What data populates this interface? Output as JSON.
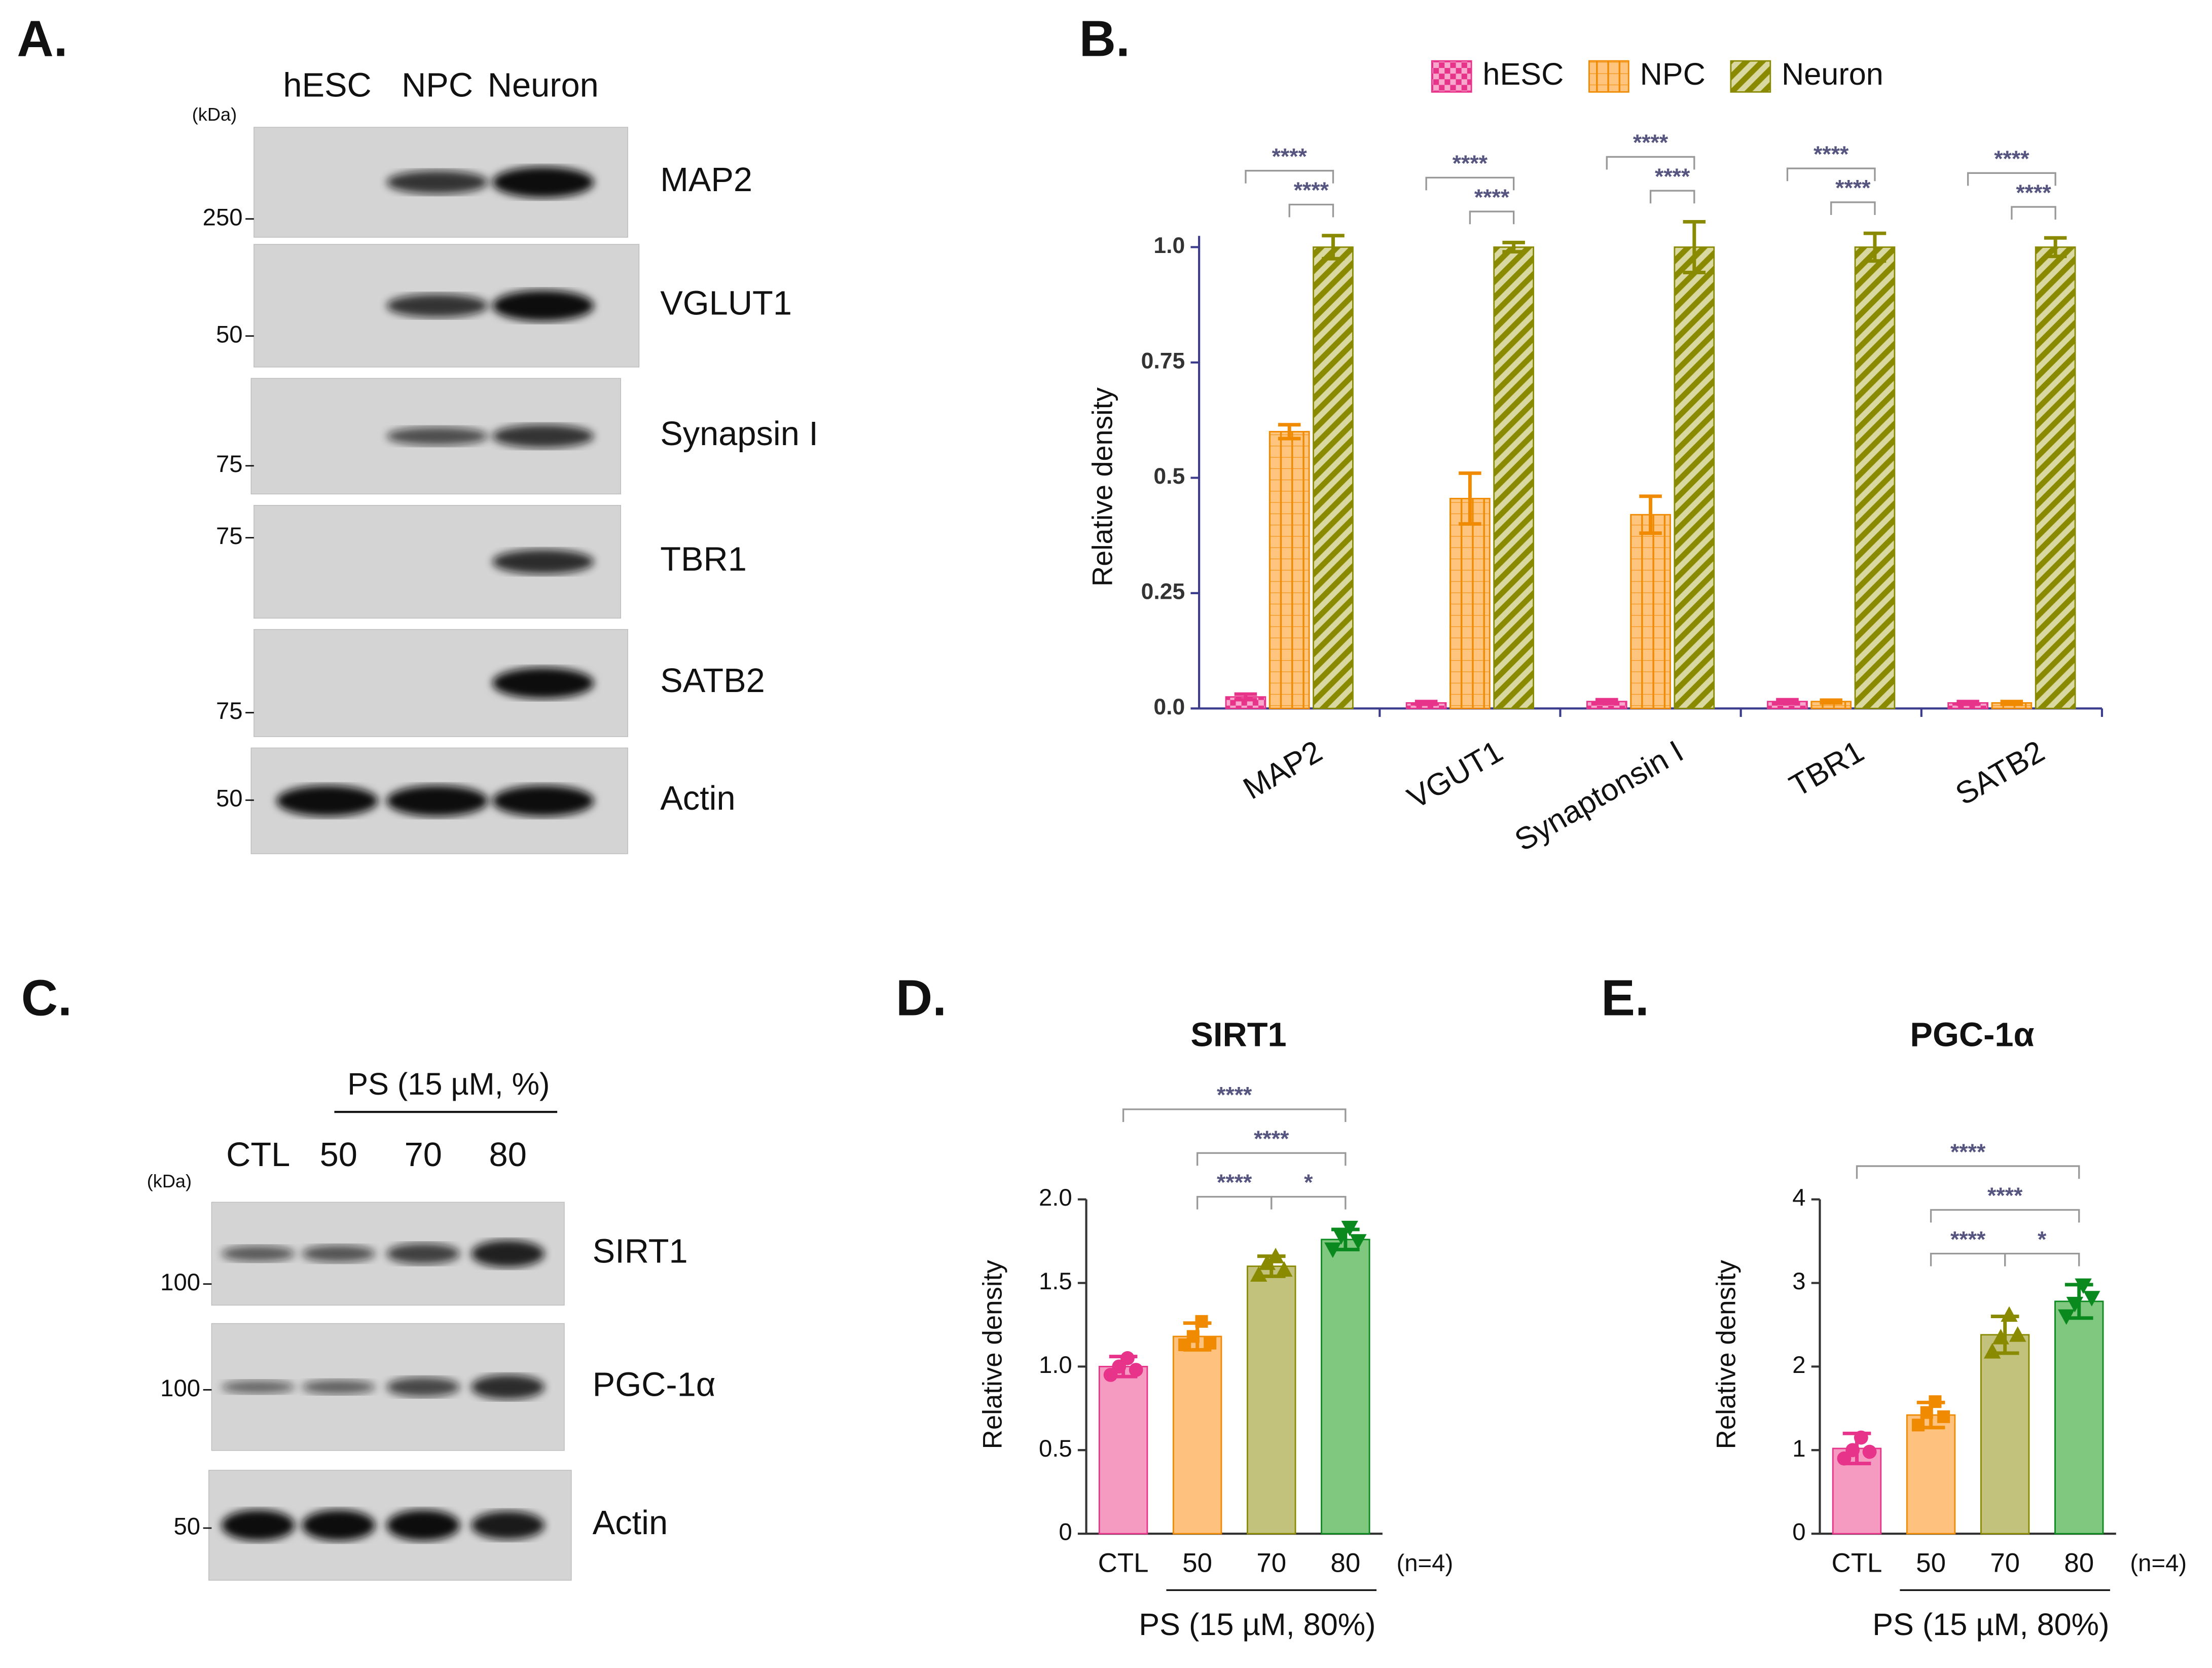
{
  "panel_labels": [
    "A.",
    "B.",
    "C.",
    "D.",
    "E."
  ],
  "blot_a": {
    "unit": "(kDa)",
    "lanes": [
      "hESC",
      "NPC",
      "Neuron"
    ],
    "rows": [
      {
        "label": "MAP2",
        "marker": "250"
      },
      {
        "label": "VGLUT1",
        "marker": "50"
      },
      {
        "label": "Synapsin I",
        "marker": "75"
      },
      {
        "label": "TBR1",
        "marker": "75"
      },
      {
        "label": "SATB2",
        "marker": "75"
      },
      {
        "label": "Actin",
        "marker": "50"
      }
    ]
  },
  "blot_c": {
    "treatment": "PS (15 µM, %)",
    "unit": "(kDa)",
    "lanes": [
      "CTL",
      "50",
      "70",
      "80"
    ],
    "rows": [
      {
        "label": "SIRT1",
        "marker": "100"
      },
      {
        "label": "PGC-1α",
        "marker": "100"
      },
      {
        "label": "Actin",
        "marker": "50"
      }
    ]
  },
  "chart_data": [
    {
      "type": "grouped-bar",
      "ylabel": "Relative density",
      "categories": [
        "MAP2",
        "VGUT1",
        "Synaptonsin I",
        "TBR1",
        "SATB2"
      ],
      "series": [
        {
          "name": "hESC",
          "color": "#e8338a",
          "pattern": "checker",
          "values": [
            0.025,
            0.012,
            0.015,
            0.015,
            0.012
          ],
          "errors": [
            0.006,
            0.003,
            0.004,
            0.004,
            0.003
          ]
        },
        {
          "name": "NPC",
          "color": "#f08a00",
          "pattern": "grid",
          "values": [
            0.6,
            0.455,
            0.42,
            0.015,
            0.012
          ],
          "errors": [
            0.015,
            0.055,
            0.04,
            0.003,
            0.003
          ]
        },
        {
          "name": "Neuron",
          "color": "#8a8a00",
          "pattern": "diagonal",
          "values": [
            1.0,
            1.0,
            1.0,
            1.0,
            1.0
          ],
          "errors": [
            0.025,
            0.01,
            0.055,
            0.03,
            0.02
          ]
        }
      ],
      "ylim": [
        0,
        1
      ],
      "yticks": [
        {
          "value": 0,
          "label": "0.0"
        },
        0.25,
        0.5,
        0.75,
        {
          "value": 1,
          "label": "1.0"
        }
      ],
      "legend": "top",
      "comparisons": [
        {
          "category": "MAP2",
          "groups": [
            "hESC",
            "Neuron"
          ],
          "label": "****"
        },
        {
          "category": "MAP2",
          "groups": [
            "NPC",
            "Neuron"
          ],
          "label": "****"
        },
        {
          "category": "VGUT1",
          "groups": [
            "hESC",
            "Neuron"
          ],
          "label": "****"
        },
        {
          "category": "VGUT1",
          "groups": [
            "NPC",
            "Neuron"
          ],
          "label": "****"
        },
        {
          "category": "Synaptonsin I",
          "groups": [
            "hESC",
            "Neuron"
          ],
          "label": "****"
        },
        {
          "category": "Synaptonsin I",
          "groups": [
            "NPC",
            "Neuron"
          ],
          "label": "****"
        },
        {
          "category": "TBR1",
          "groups": [
            "hESC",
            "Neuron"
          ],
          "label": "****"
        },
        {
          "category": "TBR1",
          "groups": [
            "NPC",
            "Neuron"
          ],
          "label": "****"
        },
        {
          "category": "SATB2",
          "groups": [
            "hESC",
            "Neuron"
          ],
          "label": "****"
        },
        {
          "category": "SATB2",
          "groups": [
            "NPC",
            "Neuron"
          ],
          "label": "****"
        }
      ]
    },
    {
      "type": "bar-points",
      "title": "SIRT1",
      "ylabel": "Relative density",
      "xlabel": "PS (15 µM, 80%)",
      "note": "(n=4)",
      "categories": [
        "CTL",
        "50",
        "70",
        "80"
      ],
      "values": [
        1.0,
        1.18,
        1.6,
        1.76
      ],
      "errors": [
        0.06,
        0.08,
        0.06,
        0.06
      ],
      "points": [
        [
          0.95,
          1.0,
          1.05,
          0.98
        ],
        [
          1.13,
          1.18,
          1.27,
          1.14
        ],
        [
          1.55,
          1.62,
          1.66,
          1.58
        ],
        [
          1.7,
          1.78,
          1.83,
          1.75
        ]
      ],
      "colors": [
        "#f59ac0",
        "#ffc27e",
        "#c3c27c",
        "#80c77f"
      ],
      "point_colors": [
        "#e8338a",
        "#f08a00",
        "#8a8a00",
        "#0a8a1e"
      ],
      "point_shapes": [
        "circle",
        "square",
        "triangle-up",
        "triangle-down"
      ],
      "ylim": [
        0,
        2
      ],
      "yticks": [
        0,
        0.5,
        {
          "value": 1,
          "label": "1.0"
        },
        1.5,
        {
          "value": 2,
          "label": "2.0"
        }
      ],
      "comparisons": [
        {
          "groups": [
            "CTL",
            "80"
          ],
          "label": "****"
        },
        {
          "groups": [
            "50",
            "80"
          ],
          "label": "****"
        },
        {
          "groups": [
            "50",
            "70"
          ],
          "label": "****"
        },
        {
          "groups": [
            "70",
            "80"
          ],
          "label": "*"
        }
      ]
    },
    {
      "type": "bar-points",
      "title": "PGC-1α",
      "ylabel": "Relative density",
      "xlabel": "PS (15 µM, 80%)",
      "note": "(n=4)",
      "categories": [
        "CTL",
        "50",
        "70",
        "80"
      ],
      "values": [
        1.02,
        1.42,
        2.38,
        2.78
      ],
      "errors": [
        0.18,
        0.15,
        0.22,
        0.2
      ],
      "points": [
        [
          0.9,
          1.0,
          1.15,
          0.98
        ],
        [
          1.3,
          1.45,
          1.58,
          1.4
        ],
        [
          2.18,
          2.35,
          2.62,
          2.38
        ],
        [
          2.6,
          2.75,
          2.97,
          2.82
        ]
      ],
      "colors": [
        "#f59ac0",
        "#ffc27e",
        "#c3c27c",
        "#80c77f"
      ],
      "point_colors": [
        "#e8338a",
        "#f08a00",
        "#8a8a00",
        "#0a8a1e"
      ],
      "point_shapes": [
        "circle",
        "square",
        "triangle-up",
        "triangle-down"
      ],
      "ylim": [
        0,
        4
      ],
      "yticks": [
        0,
        1,
        2,
        3,
        4
      ],
      "comparisons": [
        {
          "groups": [
            "CTL",
            "80"
          ],
          "label": "****"
        },
        {
          "groups": [
            "50",
            "80"
          ],
          "label": "****"
        },
        {
          "groups": [
            "50",
            "70"
          ],
          "label": "****"
        },
        {
          "groups": [
            "70",
            "80"
          ],
          "label": "*"
        }
      ]
    }
  ]
}
